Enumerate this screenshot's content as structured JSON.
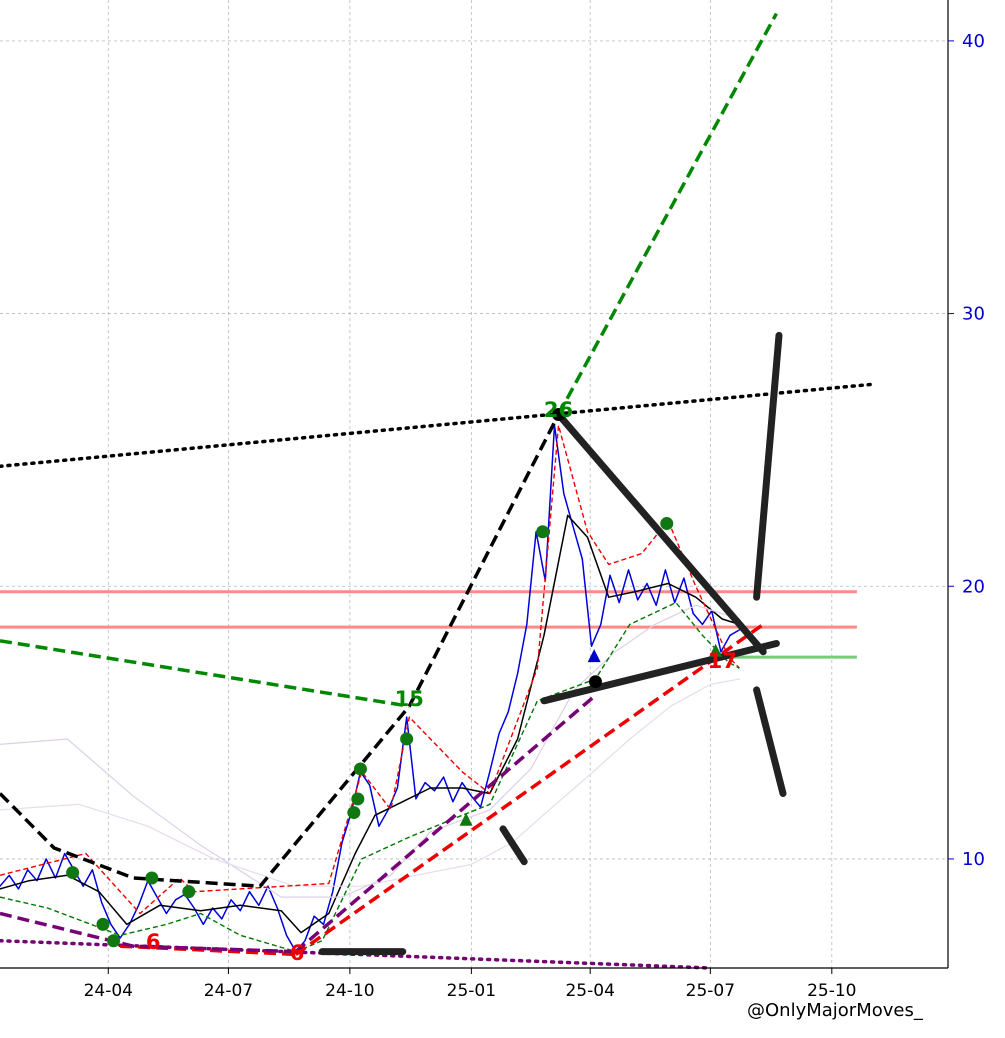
{
  "watermark": "@OnlyMajorMoves_",
  "chart_data": {
    "type": "line",
    "title": "",
    "xlabel": "",
    "ylabel": "",
    "x_ticks": [
      "24-04",
      "24-07",
      "24-10",
      "25-01",
      "25-04",
      "25-07",
      "25-10"
    ],
    "y_ticks": [
      10,
      20,
      30,
      40
    ],
    "y_axis_side": "right",
    "xlim": [
      "2024-01-10",
      "2025-12-28"
    ],
    "ylim": [
      6.0,
      41.5
    ],
    "grid": true,
    "colors": {
      "price": "#0000dd",
      "moving_average": "#000000",
      "zigzag_high": "#ee0000",
      "zigzag_low": "#007700",
      "pivot_marker": "#117711",
      "resistance": "#ff8888",
      "support": "#77cc77",
      "trend_black": "#000000",
      "trend_green": "#008800",
      "trend_red": "#ee0000",
      "trend_purple": "#770077",
      "drawn": "#222222"
    },
    "annotations": [
      {
        "text": "26",
        "x": "2025-03-08",
        "y": 26.2,
        "color": "#008800"
      },
      {
        "text": "15",
        "x": "2024-11-15",
        "y": 15.6,
        "color": "#008800"
      },
      {
        "text": "6",
        "x": "2024-05-05",
        "y": 6.7,
        "color": "#ee0000"
      },
      {
        "text": "6",
        "x": "2024-08-22",
        "y": 6.3,
        "color": "#ee0000"
      },
      {
        "text": "17",
        "x": "2025-07-10",
        "y": 17.0,
        "color": "#ee0000"
      }
    ],
    "horizontal_levels": [
      {
        "y": 19.8,
        "color": "#ff8888",
        "from": "2024-01-10",
        "to": "2025-10-20"
      },
      {
        "y": 18.5,
        "color": "#ff8888",
        "from": "2024-01-10",
        "to": "2025-10-20"
      },
      {
        "y": 17.4,
        "color": "#77cc77",
        "from": "2025-07-15",
        "to": "2025-10-20"
      }
    ],
    "series": [
      {
        "style": "solid-thin",
        "color": "#0000dd",
        "points": [
          [
            "2024-01-10",
            9.0
          ],
          [
            "2024-01-17",
            9.4
          ],
          [
            "2024-01-24",
            8.9
          ],
          [
            "2024-01-31",
            9.6
          ],
          [
            "2024-02-07",
            9.2
          ],
          [
            "2024-02-14",
            10.0
          ],
          [
            "2024-02-21",
            9.3
          ],
          [
            "2024-02-28",
            10.2
          ],
          [
            "2024-03-06",
            9.6
          ],
          [
            "2024-03-13",
            9.0
          ],
          [
            "2024-03-20",
            9.6
          ],
          [
            "2024-03-27",
            8.4
          ],
          [
            "2024-04-03",
            7.6
          ],
          [
            "2024-04-10",
            7.1
          ],
          [
            "2024-04-17",
            7.6
          ],
          [
            "2024-04-24",
            8.3
          ],
          [
            "2024-05-01",
            9.2
          ],
          [
            "2024-05-08",
            8.6
          ],
          [
            "2024-05-15",
            8.0
          ],
          [
            "2024-05-22",
            8.5
          ],
          [
            "2024-05-29",
            8.7
          ],
          [
            "2024-06-05",
            8.2
          ],
          [
            "2024-06-12",
            7.6
          ],
          [
            "2024-06-19",
            8.2
          ],
          [
            "2024-06-26",
            7.8
          ],
          [
            "2024-07-03",
            8.5
          ],
          [
            "2024-07-10",
            8.1
          ],
          [
            "2024-07-17",
            8.8
          ],
          [
            "2024-07-24",
            8.3
          ],
          [
            "2024-07-31",
            9.0
          ],
          [
            "2024-08-07",
            8.2
          ],
          [
            "2024-08-14",
            7.2
          ],
          [
            "2024-08-21",
            6.6
          ],
          [
            "2024-08-28",
            7.0
          ],
          [
            "2024-09-04",
            7.9
          ],
          [
            "2024-09-11",
            7.6
          ],
          [
            "2024-09-18",
            8.8
          ],
          [
            "2024-09-25",
            10.6
          ],
          [
            "2024-10-02",
            11.7
          ],
          [
            "2024-10-09",
            13.2
          ],
          [
            "2024-10-16",
            12.7
          ],
          [
            "2024-10-23",
            11.2
          ],
          [
            "2024-10-30",
            11.8
          ],
          [
            "2024-11-06",
            12.6
          ],
          [
            "2024-11-13",
            15.2
          ],
          [
            "2024-11-20",
            12.2
          ],
          [
            "2024-11-27",
            12.8
          ],
          [
            "2024-12-04",
            12.5
          ],
          [
            "2024-12-11",
            13.0
          ],
          [
            "2024-12-18",
            12.1
          ],
          [
            "2024-12-25",
            12.8
          ],
          [
            "2025-01-01",
            12.3
          ],
          [
            "2025-01-08",
            11.9
          ],
          [
            "2025-01-15",
            13.2
          ],
          [
            "2025-01-22",
            14.6
          ],
          [
            "2025-01-29",
            15.4
          ],
          [
            "2025-02-05",
            16.8
          ],
          [
            "2025-02-12",
            18.6
          ],
          [
            "2025-02-19",
            22.0
          ],
          [
            "2025-02-26",
            20.2
          ],
          [
            "2025-03-05",
            25.9
          ],
          [
            "2025-03-12",
            23.4
          ],
          [
            "2025-03-19",
            22.2
          ],
          [
            "2025-03-26",
            21.0
          ],
          [
            "2025-04-02",
            17.8
          ],
          [
            "2025-04-09",
            18.6
          ],
          [
            "2025-04-16",
            20.4
          ],
          [
            "2025-04-23",
            19.4
          ],
          [
            "2025-04-30",
            20.6
          ],
          [
            "2025-05-07",
            19.5
          ],
          [
            "2025-05-14",
            20.1
          ],
          [
            "2025-05-21",
            19.3
          ],
          [
            "2025-05-28",
            20.6
          ],
          [
            "2025-06-04",
            19.4
          ],
          [
            "2025-06-11",
            20.3
          ],
          [
            "2025-06-18",
            19.0
          ],
          [
            "2025-06-25",
            18.6
          ],
          [
            "2025-07-02",
            19.1
          ],
          [
            "2025-07-09",
            17.6
          ],
          [
            "2025-07-16",
            18.2
          ],
          [
            "2025-07-23",
            18.4
          ]
        ]
      },
      {
        "style": "solid-thin",
        "color": "#000000",
        "points": [
          [
            "2024-01-10",
            8.9
          ],
          [
            "2024-02-01",
            9.2
          ],
          [
            "2024-03-01",
            9.4
          ],
          [
            "2024-03-25",
            8.8
          ],
          [
            "2024-04-15",
            7.6
          ],
          [
            "2024-05-10",
            8.3
          ],
          [
            "2024-06-10",
            8.1
          ],
          [
            "2024-07-10",
            8.3
          ],
          [
            "2024-08-10",
            8.1
          ],
          [
            "2024-08-25",
            7.3
          ],
          [
            "2024-09-15",
            8.0
          ],
          [
            "2024-10-05",
            10.2
          ],
          [
            "2024-10-20",
            11.6
          ],
          [
            "2024-11-10",
            12.1
          ],
          [
            "2024-12-01",
            12.6
          ],
          [
            "2024-12-25",
            12.6
          ],
          [
            "2025-01-15",
            12.4
          ],
          [
            "2025-02-05",
            14.4
          ],
          [
            "2025-02-25",
            18.2
          ],
          [
            "2025-03-15",
            22.6
          ],
          [
            "2025-03-30",
            21.8
          ],
          [
            "2025-04-15",
            19.6
          ],
          [
            "2025-05-05",
            19.8
          ],
          [
            "2025-05-30",
            20.1
          ],
          [
            "2025-06-20",
            19.6
          ],
          [
            "2025-07-10",
            18.8
          ],
          [
            "2025-07-23",
            18.6
          ]
        ]
      },
      {
        "style": "solid-faint",
        "color": "#ddd0e6",
        "points": [
          [
            "2024-01-10",
            14.2
          ],
          [
            "2024-03-01",
            14.4
          ],
          [
            "2024-04-20",
            12.3
          ],
          [
            "2024-06-10",
            10.5
          ],
          [
            "2024-08-10",
            8.6
          ],
          [
            "2024-09-25",
            8.6
          ],
          [
            "2024-11-01",
            9.4
          ],
          [
            "2024-12-01",
            11.0
          ],
          [
            "2025-01-15",
            11.8
          ],
          [
            "2025-02-15",
            13.3
          ],
          [
            "2025-03-20",
            16.2
          ],
          [
            "2025-04-20",
            17.6
          ],
          [
            "2025-05-20",
            18.6
          ],
          [
            "2025-06-20",
            19.3
          ],
          [
            "2025-07-23",
            18.8
          ]
        ]
      },
      {
        "style": "solid-faint",
        "color": "#e6dcec",
        "points": [
          [
            "2024-01-10",
            11.8
          ],
          [
            "2024-03-10",
            12.0
          ],
          [
            "2024-05-01",
            11.2
          ],
          [
            "2024-06-20",
            10.0
          ],
          [
            "2024-08-20",
            9.0
          ],
          [
            "2024-10-10",
            9.0
          ],
          [
            "2024-11-20",
            9.4
          ],
          [
            "2025-01-01",
            9.8
          ],
          [
            "2025-02-01",
            10.6
          ],
          [
            "2025-03-01",
            11.8
          ],
          [
            "2025-04-01",
            13.1
          ],
          [
            "2025-05-01",
            14.4
          ],
          [
            "2025-06-01",
            15.6
          ],
          [
            "2025-07-01",
            16.4
          ],
          [
            "2025-07-23",
            16.6
          ]
        ]
      },
      {
        "style": "dashed-thin",
        "color": "#ee0000",
        "points": [
          [
            "2024-01-10",
            9.4
          ],
          [
            "2024-03-15",
            10.2
          ],
          [
            "2024-04-25",
            8.0
          ],
          [
            "2024-05-25",
            9.3
          ],
          [
            "2024-06-05",
            8.8
          ],
          [
            "2024-09-15",
            9.1
          ],
          [
            "2024-10-10",
            13.2
          ],
          [
            "2024-11-01",
            11.8
          ],
          [
            "2024-11-15",
            15.2
          ],
          [
            "2024-12-25",
            13.2
          ],
          [
            "2025-01-15",
            12.4
          ],
          [
            "2025-02-20",
            17.0
          ],
          [
            "2025-03-08",
            25.9
          ],
          [
            "2025-03-30",
            22.0
          ],
          [
            "2025-04-15",
            20.8
          ],
          [
            "2025-05-10",
            21.2
          ],
          [
            "2025-05-30",
            22.4
          ],
          [
            "2025-06-20",
            20.0
          ],
          [
            "2025-07-15",
            17.4
          ],
          [
            "2025-07-23",
            17.0
          ]
        ]
      },
      {
        "style": "dashed-thin",
        "color": "#007700",
        "points": [
          [
            "2024-01-10",
            8.6
          ],
          [
            "2024-02-15",
            8.2
          ],
          [
            "2024-04-10",
            7.2
          ],
          [
            "2024-05-15",
            7.6
          ],
          [
            "2024-06-10",
            8.0
          ],
          [
            "2024-07-10",
            7.2
          ],
          [
            "2024-08-21",
            6.6
          ],
          [
            "2024-09-10",
            7.0
          ],
          [
            "2024-10-10",
            10.0
          ],
          [
            "2024-11-15",
            10.8
          ],
          [
            "2024-12-25",
            11.6
          ],
          [
            "2025-01-15",
            12.0
          ],
          [
            "2025-02-20",
            15.8
          ],
          [
            "2025-04-05",
            16.6
          ],
          [
            "2025-05-01",
            18.6
          ],
          [
            "2025-06-05",
            19.4
          ],
          [
            "2025-06-25",
            18.2
          ],
          [
            "2025-07-15",
            17.2
          ],
          [
            "2025-07-23",
            17.0
          ]
        ]
      },
      {
        "style": "dashed-thick",
        "color": "#000000",
        "points": [
          [
            "2024-01-10",
            12.4
          ],
          [
            "2024-02-20",
            10.4
          ],
          [
            "2024-04-20",
            9.3
          ],
          [
            "2024-07-25",
            9.0
          ],
          [
            "2024-11-15",
            15.6
          ],
          [
            "2025-03-08",
            26.3
          ]
        ]
      },
      {
        "style": "dotted-thick",
        "color": "#000000",
        "points": [
          [
            "2024-01-10",
            24.4
          ],
          [
            "2025-10-30",
            27.4
          ]
        ]
      },
      {
        "style": "dotted-thick",
        "color": "#770077",
        "points": [
          [
            "2024-01-10",
            7.0
          ],
          [
            "2025-07-01",
            6.0
          ]
        ]
      },
      {
        "style": "dashed-thick",
        "color": "#008800",
        "points": [
          [
            "2024-01-10",
            18.0
          ],
          [
            "2024-11-15",
            15.6
          ]
        ]
      },
      {
        "style": "dashed-thick",
        "color": "#008800",
        "points": [
          [
            "2025-03-08",
            26.3
          ],
          [
            "2025-08-20",
            41.0
          ]
        ]
      },
      {
        "style": "dashed-thick",
        "color": "#ee0000",
        "points": [
          [
            "2024-04-10",
            6.8
          ],
          [
            "2024-08-21",
            6.5
          ]
        ]
      },
      {
        "style": "dashed-thick",
        "color": "#ee0000",
        "points": [
          [
            "2024-08-21",
            6.5
          ],
          [
            "2025-08-10",
            18.6
          ]
        ]
      },
      {
        "style": "dashed-thick",
        "color": "#770077",
        "points": [
          [
            "2024-01-10",
            8.0
          ],
          [
            "2024-04-20",
            6.8
          ],
          [
            "2024-08-21",
            6.6
          ]
        ]
      },
      {
        "style": "dashed-thick",
        "color": "#770077",
        "points": [
          [
            "2024-08-21",
            6.6
          ],
          [
            "2025-04-05",
            16.0
          ]
        ]
      },
      {
        "style": "solid-heavy",
        "color": "#222222",
        "points": [
          [
            "2025-03-08",
            26.3
          ],
          [
            "2025-08-10",
            17.6
          ]
        ]
      },
      {
        "style": "solid-heavy",
        "color": "#222222",
        "points": [
          [
            "2025-02-25",
            15.8
          ],
          [
            "2025-08-20",
            17.9
          ]
        ]
      },
      {
        "style": "solid-heavy",
        "color": "#222222",
        "points": [
          [
            "2025-08-05",
            19.6
          ],
          [
            "2025-08-22",
            29.2
          ]
        ]
      },
      {
        "style": "solid-heavy",
        "color": "#222222",
        "points": [
          [
            "2025-08-05",
            16.2
          ],
          [
            "2025-08-25",
            12.4
          ]
        ]
      },
      {
        "style": "solid-heavy",
        "color": "#222222",
        "points": [
          [
            "2025-01-25",
            11.1
          ],
          [
            "2025-02-10",
            9.9
          ]
        ]
      },
      {
        "style": "solid-heavy",
        "color": "#222222",
        "points": [
          [
            "2024-09-10",
            6.6
          ],
          [
            "2024-11-10",
            6.6
          ]
        ]
      }
    ],
    "markers": [
      {
        "shape": "circle",
        "color": "#117711",
        "points": [
          [
            "2024-03-05",
            9.5
          ],
          [
            "2024-03-28",
            7.6
          ],
          [
            "2024-04-05",
            7.0
          ],
          [
            "2024-05-04",
            9.3
          ],
          [
            "2024-06-01",
            8.8
          ],
          [
            "2024-10-04",
            11.7
          ],
          [
            "2024-10-07",
            12.2
          ],
          [
            "2024-10-09",
            13.3
          ],
          [
            "2024-11-13",
            14.4
          ],
          [
            "2025-02-24",
            22.0
          ],
          [
            "2025-05-29",
            22.3
          ]
        ]
      },
      {
        "shape": "circle",
        "color": "#000000",
        "points": [
          [
            "2025-03-08",
            26.3
          ],
          [
            "2025-04-05",
            16.5
          ]
        ]
      },
      {
        "shape": "triangle",
        "color": "#117711",
        "points": [
          [
            "2024-12-28",
            11.4
          ],
          [
            "2025-07-05",
            17.6
          ]
        ]
      },
      {
        "shape": "triangle",
        "color": "#0000cc",
        "points": [
          [
            "2025-04-04",
            17.4
          ]
        ]
      }
    ]
  }
}
